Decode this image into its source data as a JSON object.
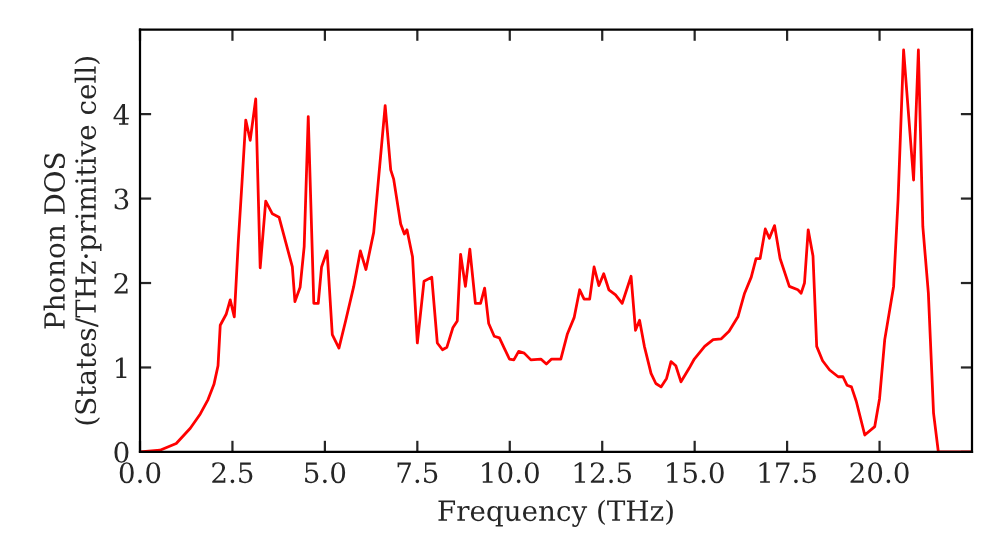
{
  "chart_data": {
    "type": "line",
    "xlabel": "Frequency (THz)",
    "ylabel": "Phonon DOS\n(States/THz·primitive cell)",
    "xlim": [
      0,
      22.5
    ],
    "ylim": [
      0,
      5
    ],
    "xticks": [
      {
        "value": 0,
        "label": "0.0"
      },
      2.5,
      {
        "value": 5,
        "label": "5.0"
      },
      7.5,
      {
        "value": 10,
        "label": "10.0"
      },
      12.5,
      {
        "value": 15,
        "label": "15.0"
      },
      17.5,
      {
        "value": 20,
        "label": "20.0"
      }
    ],
    "yticks": [
      0,
      1,
      2,
      3,
      4
    ],
    "grid": false,
    "legend": false,
    "marker": "none",
    "line_style": "solid",
    "series": [
      {
        "color": "#ff0000",
        "x": [
          0,
          0.54,
          0.98,
          1.36,
          1.63,
          1.84,
          2.0,
          2.11,
          2.17,
          2.33,
          2.44,
          2.55,
          2.66,
          2.76,
          2.86,
          2.98,
          3.13,
          3.25,
          3.4,
          3.58,
          3.76,
          4.12,
          4.19,
          4.33,
          4.44,
          4.55,
          4.7,
          4.82,
          4.91,
          5.06,
          5.2,
          5.38,
          5.56,
          5.78,
          5.96,
          6.11,
          6.32,
          6.63,
          6.78,
          6.86,
          7.05,
          7.15,
          7.22,
          7.37,
          7.5,
          7.68,
          7.89,
          8.04,
          8.18,
          8.3,
          8.46,
          8.58,
          8.67,
          8.8,
          8.92,
          9.07,
          9.21,
          9.32,
          9.43,
          9.58,
          9.72,
          9.85,
          9.99,
          10.11,
          10.24,
          10.39,
          10.57,
          10.84,
          10.99,
          11.13,
          11.38,
          11.56,
          11.74,
          11.89,
          12.01,
          12.16,
          12.28,
          12.41,
          12.54,
          12.68,
          12.86,
          13.04,
          13.28,
          13.4,
          13.51,
          13.64,
          13.82,
          13.95,
          14.09,
          14.24,
          14.36,
          14.49,
          14.63,
          14.85,
          14.99,
          15.27,
          15.5,
          15.72,
          15.93,
          16.17,
          16.35,
          16.53,
          16.66,
          16.77,
          16.91,
          17.02,
          17.16,
          17.31,
          17.56,
          17.79,
          17.88,
          17.97,
          18.07,
          18.2,
          18.3,
          18.46,
          18.65,
          18.88,
          19.01,
          19.12,
          19.24,
          19.37,
          19.6,
          19.87,
          20.0,
          20.14,
          20.38,
          20.5,
          20.65,
          20.92,
          21.05,
          21.17,
          21.32,
          21.46,
          21.59,
          22.5
        ],
        "values": [
          0,
          0.02,
          0.1,
          0.28,
          0.45,
          0.62,
          0.8,
          1.02,
          1.5,
          1.63,
          1.8,
          1.6,
          2.5,
          3.2,
          3.93,
          3.69,
          4.18,
          2.18,
          2.97,
          2.82,
          2.78,
          2.19,
          1.78,
          1.95,
          2.43,
          3.97,
          1.76,
          1.76,
          2.19,
          2.38,
          1.39,
          1.23,
          1.55,
          1.96,
          2.38,
          2.16,
          2.6,
          4.1,
          3.34,
          3.23,
          2.7,
          2.58,
          2.63,
          2.31,
          1.29,
          2.02,
          2.07,
          1.29,
          1.21,
          1.24,
          1.47,
          1.55,
          2.34,
          1.96,
          2.4,
          1.76,
          1.76,
          1.94,
          1.52,
          1.37,
          1.35,
          1.23,
          1.1,
          1.09,
          1.19,
          1.17,
          1.09,
          1.1,
          1.04,
          1.1,
          1.1,
          1.4,
          1.59,
          1.92,
          1.81,
          1.81,
          2.19,
          1.97,
          2.11,
          1.92,
          1.86,
          1.76,
          2.08,
          1.44,
          1.56,
          1.25,
          0.93,
          0.81,
          0.77,
          0.87,
          1.07,
          1.02,
          0.83,
          0.99,
          1.1,
          1.25,
          1.33,
          1.34,
          1.43,
          1.6,
          1.88,
          2.07,
          2.29,
          2.29,
          2.64,
          2.53,
          2.68,
          2.29,
          1.96,
          1.92,
          1.88,
          2.0,
          2.63,
          2.32,
          1.25,
          1.08,
          0.97,
          0.89,
          0.89,
          0.79,
          0.77,
          0.6,
          0.2,
          0.3,
          0.63,
          1.33,
          1.96,
          2.98,
          4.76,
          3.22,
          4.76,
          2.67,
          1.88,
          0.46,
          0,
          0
        ]
      }
    ]
  }
}
